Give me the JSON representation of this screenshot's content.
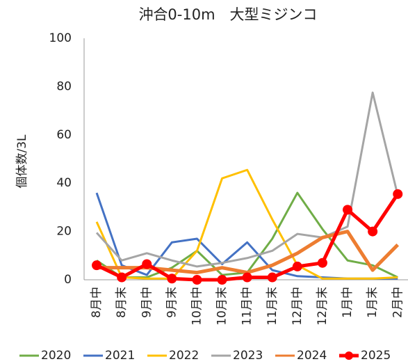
{
  "chart_data": {
    "type": "line",
    "title": "沖合0-10m　大型ミジンコ",
    "y_label": "個体数/3L",
    "categories": [
      "8月中",
      "8月末",
      "9月中",
      "9月末",
      "10月中",
      "10月末",
      "11月中",
      "11月末",
      "12月中",
      "12月末",
      "1月中",
      "1月末",
      "2月中"
    ],
    "series": [
      {
        "name": "2020",
        "color": "#70ad47",
        "values": [
          8,
          1,
          1,
          5,
          12,
          2,
          3,
          17,
          36,
          21,
          8,
          6,
          1
        ]
      },
      {
        "name": "2021",
        "color": "#4472c4",
        "values": [
          36,
          6,
          2,
          15.5,
          17,
          6.5,
          15.5,
          4,
          1.5,
          1,
          0.5,
          0.5,
          0.5
        ]
      },
      {
        "name": "2022",
        "color": "#ffc000",
        "values": [
          24,
          1,
          0.5,
          0.5,
          12,
          42,
          45.5,
          25,
          6,
          0.5,
          0.5,
          0.5,
          1
        ]
      },
      {
        "name": "2023",
        "color": "#a5a5a5",
        "values": [
          19.5,
          8,
          11,
          8,
          5.5,
          7,
          9,
          12,
          19,
          17.5,
          22,
          77.5,
          35
        ]
      },
      {
        "name": "2024",
        "color": "#ed7d31",
        "values": [
          5,
          5,
          5,
          4,
          3,
          5,
          3,
          6,
          11,
          17.5,
          20,
          4,
          14.5
        ]
      },
      {
        "name": "2025",
        "color": "#ff0000",
        "markers": true,
        "values": [
          6,
          1,
          6.5,
          0.5,
          0,
          0,
          1,
          1,
          5.5,
          7,
          29,
          20,
          35.5
        ]
      }
    ],
    "ylim": [
      0,
      100
    ],
    "yticks": [
      0,
      20,
      40,
      60,
      80,
      100
    ],
    "grid": false,
    "legend": "bottom"
  }
}
